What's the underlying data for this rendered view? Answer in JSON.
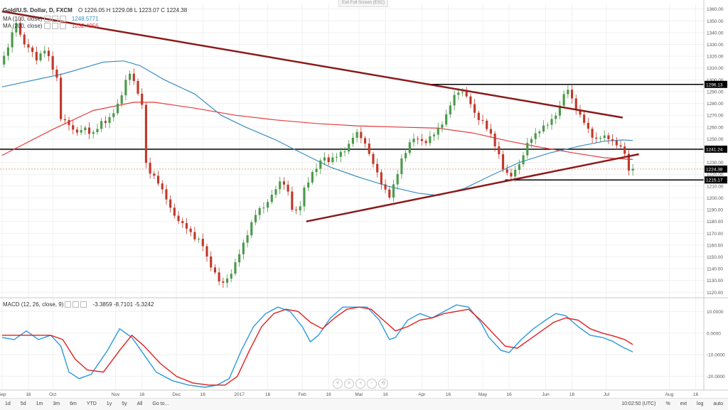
{
  "header": {
    "symbol": "Gold/U.S. Dollar, D, FXCM",
    "ohlc": "O 1226.05 H 1229.08 L 1223.07 C 1224.38",
    "ma1_label": "MA (100, close)",
    "ma1_value": "1248.5771",
    "ma2_label": "MA (200, close)",
    "ma2_value": "1232.4956",
    "exit_fullscreen": "Exit Full Screen (ESC)",
    "macd_label": "MACD (12, 26, close, 9)",
    "macd_values": "-3.3859  -8.7101  -5.3242"
  },
  "bottom_bar": {
    "ranges": [
      "1d",
      "5d",
      "1m",
      "3m",
      "6m",
      "YTD",
      "1y",
      "5y",
      "All",
      "Go to..."
    ],
    "time": "10:02:50 (UTC)",
    "right_controls": [
      "%",
      "ext",
      "log",
      "auto"
    ]
  },
  "nav_buttons": [
    "<",
    ">",
    "+",
    "-",
    "⟲"
  ],
  "colors": {
    "up": "#4a9a4a",
    "down": "#c0392b",
    "ma100": "#3a8fc4",
    "ma200": "#e43d3d",
    "trendline": "#8b1a1a",
    "level": "#000000",
    "macd": "#2a9ae0",
    "signal": "#e02020"
  },
  "chart_data": {
    "type": "candlestick",
    "y_axis_ticks": [
      "1360.00",
      "1350.00",
      "1340.00",
      "1330.00",
      "1320.00",
      "1310.00",
      "1300.00",
      "1290.00",
      "1280.00",
      "1270.00",
      "1260.00",
      "1250.00",
      "1240.00",
      "1230.00",
      "1220.00",
      "1210.00",
      "1200.00",
      "1190.00",
      "1180.00",
      "1170.00",
      "1160.00",
      "1150.00",
      "1140.00",
      "1130.00",
      "1120.00"
    ],
    "ylim": [
      1116,
      1364
    ],
    "x_axis_labels": [
      {
        "label": "Sep",
        "day": 0
      },
      {
        "label": "16",
        "day": 13
      },
      {
        "label": "Oct",
        "day": 25
      },
      {
        "label": "Nov",
        "day": 56
      },
      {
        "label": "16",
        "day": 69
      },
      {
        "label": "Dec",
        "day": 86
      },
      {
        "label": "16",
        "day": 99
      },
      {
        "label": "2017",
        "day": 117
      },
      {
        "label": "16",
        "day": 131
      },
      {
        "label": "Feb",
        "day": 148
      },
      {
        "label": "16",
        "day": 161
      },
      {
        "label": "Mar",
        "day": 176
      },
      {
        "label": "16",
        "day": 189
      },
      {
        "label": "Apr",
        "day": 207
      },
      {
        "label": "16",
        "day": 220
      },
      {
        "label": "May",
        "day": 237
      },
      {
        "label": "16",
        "day": 250
      },
      {
        "label": "Jun",
        "day": 268
      },
      {
        "label": "16",
        "day": 281
      },
      {
        "label": "Jul",
        "day": 298
      },
      {
        "label": "Aug",
        "day": 329
      },
      {
        "label": "16",
        "day": 342
      }
    ],
    "xlim": [
      -1,
      346
    ],
    "price_labels": [
      {
        "value": 1296.13,
        "text": "1296.13"
      },
      {
        "value": 1241.24,
        "text": "1241.24"
      },
      {
        "value": 1224.38,
        "text": "1224.38"
      },
      {
        "value": 1215.17,
        "text": "1215.17"
      }
    ],
    "close_series": [
      {
        "day": 0,
        "close": 1313
      },
      {
        "day": 4,
        "close": 1335
      },
      {
        "day": 7,
        "close": 1348
      },
      {
        "day": 10,
        "close": 1333
      },
      {
        "day": 14,
        "close": 1325
      },
      {
        "day": 17,
        "close": 1318
      },
      {
        "day": 21,
        "close": 1325
      },
      {
        "day": 24,
        "close": 1316
      },
      {
        "day": 27,
        "close": 1300
      },
      {
        "day": 28,
        "close": 1268
      },
      {
        "day": 32,
        "close": 1265
      },
      {
        "day": 36,
        "close": 1254
      },
      {
        "day": 40,
        "close": 1260
      },
      {
        "day": 44,
        "close": 1253
      },
      {
        "day": 48,
        "close": 1262
      },
      {
        "day": 52,
        "close": 1266
      },
      {
        "day": 55,
        "close": 1272
      },
      {
        "day": 58,
        "close": 1282
      },
      {
        "day": 61,
        "close": 1300
      },
      {
        "day": 64,
        "close": 1306
      },
      {
        "day": 67,
        "close": 1288
      },
      {
        "day": 70,
        "close": 1275
      },
      {
        "day": 71,
        "close": 1228
      },
      {
        "day": 74,
        "close": 1220
      },
      {
        "day": 78,
        "close": 1210
      },
      {
        "day": 81,
        "close": 1200
      },
      {
        "day": 84,
        "close": 1186
      },
      {
        "day": 88,
        "close": 1180
      },
      {
        "day": 92,
        "close": 1172
      },
      {
        "day": 96,
        "close": 1165
      },
      {
        "day": 99,
        "close": 1160
      },
      {
        "day": 101,
        "close": 1150
      },
      {
        "day": 104,
        "close": 1138
      },
      {
        "day": 107,
        "close": 1130
      },
      {
        "day": 110,
        "close": 1128
      },
      {
        "day": 113,
        "close": 1136
      },
      {
        "day": 116,
        "close": 1150
      },
      {
        "day": 119,
        "close": 1160
      },
      {
        "day": 122,
        "close": 1175
      },
      {
        "day": 125,
        "close": 1186
      },
      {
        "day": 128,
        "close": 1192
      },
      {
        "day": 131,
        "close": 1196
      },
      {
        "day": 134,
        "close": 1205
      },
      {
        "day": 137,
        "close": 1214
      },
      {
        "day": 140,
        "close": 1210
      },
      {
        "day": 143,
        "close": 1192
      },
      {
        "day": 146,
        "close": 1186
      },
      {
        "day": 149,
        "close": 1208
      },
      {
        "day": 152,
        "close": 1218
      },
      {
        "day": 155,
        "close": 1225
      },
      {
        "day": 158,
        "close": 1236
      },
      {
        "day": 161,
        "close": 1230
      },
      {
        "day": 164,
        "close": 1236
      },
      {
        "day": 167,
        "close": 1237
      },
      {
        "day": 170,
        "close": 1242
      },
      {
        "day": 173,
        "close": 1252
      },
      {
        "day": 176,
        "close": 1255
      },
      {
        "day": 179,
        "close": 1246
      },
      {
        "day": 182,
        "close": 1232
      },
      {
        "day": 185,
        "close": 1222
      },
      {
        "day": 188,
        "close": 1207
      },
      {
        "day": 191,
        "close": 1202
      },
      {
        "day": 194,
        "close": 1215
      },
      {
        "day": 197,
        "close": 1232
      },
      {
        "day": 200,
        "close": 1244
      },
      {
        "day": 203,
        "close": 1250
      },
      {
        "day": 206,
        "close": 1250
      },
      {
        "day": 209,
        "close": 1246
      },
      {
        "day": 212,
        "close": 1254
      },
      {
        "day": 215,
        "close": 1258
      },
      {
        "day": 218,
        "close": 1265
      },
      {
        "day": 221,
        "close": 1280
      },
      {
        "day": 224,
        "close": 1288
      },
      {
        "day": 226,
        "close": 1292
      },
      {
        "day": 229,
        "close": 1286
      },
      {
        "day": 232,
        "close": 1275
      },
      {
        "day": 235,
        "close": 1267
      },
      {
        "day": 238,
        "close": 1262
      },
      {
        "day": 241,
        "close": 1254
      },
      {
        "day": 244,
        "close": 1240
      },
      {
        "day": 246,
        "close": 1230
      },
      {
        "day": 248,
        "close": 1222
      },
      {
        "day": 251,
        "close": 1218
      },
      {
        "day": 254,
        "close": 1226
      },
      {
        "day": 257,
        "close": 1236
      },
      {
        "day": 260,
        "close": 1250
      },
      {
        "day": 263,
        "close": 1254
      },
      {
        "day": 266,
        "close": 1258
      },
      {
        "day": 269,
        "close": 1264
      },
      {
        "day": 272,
        "close": 1266
      },
      {
        "day": 275,
        "close": 1278
      },
      {
        "day": 278,
        "close": 1294
      },
      {
        "day": 281,
        "close": 1284
      },
      {
        "day": 284,
        "close": 1272
      },
      {
        "day": 287,
        "close": 1264
      },
      {
        "day": 290,
        "close": 1255
      },
      {
        "day": 293,
        "close": 1248
      },
      {
        "day": 296,
        "close": 1254
      },
      {
        "day": 299,
        "close": 1250
      },
      {
        "day": 302,
        "close": 1246
      },
      {
        "day": 305,
        "close": 1244
      },
      {
        "day": 307,
        "close": 1236
      },
      {
        "day": 308,
        "close": 1222
      },
      {
        "day": 310,
        "close": 1226
      },
      {
        "day": 311,
        "close": 1224.38
      }
    ],
    "ma100_series": [
      {
        "day": 0,
        "value": 1294
      },
      {
        "day": 30,
        "value": 1305
      },
      {
        "day": 50,
        "value": 1315
      },
      {
        "day": 60,
        "value": 1316
      },
      {
        "day": 68,
        "value": 1312
      },
      {
        "day": 80,
        "value": 1300
      },
      {
        "day": 95,
        "value": 1288
      },
      {
        "day": 108,
        "value": 1270
      },
      {
        "day": 120,
        "value": 1260
      },
      {
        "day": 135,
        "value": 1249
      },
      {
        "day": 150,
        "value": 1236
      },
      {
        "day": 162,
        "value": 1226
      },
      {
        "day": 175,
        "value": 1218
      },
      {
        "day": 190,
        "value": 1210
      },
      {
        "day": 205,
        "value": 1204
      },
      {
        "day": 215,
        "value": 1202
      },
      {
        "day": 228,
        "value": 1208
      },
      {
        "day": 240,
        "value": 1218
      },
      {
        "day": 255,
        "value": 1230
      },
      {
        "day": 270,
        "value": 1238
      },
      {
        "day": 285,
        "value": 1244
      },
      {
        "day": 297,
        "value": 1248
      },
      {
        "day": 306,
        "value": 1249
      },
      {
        "day": 311,
        "value": 1248.58
      }
    ],
    "ma200_series": [
      {
        "day": 0,
        "value": 1236
      },
      {
        "day": 25,
        "value": 1258
      },
      {
        "day": 45,
        "value": 1274
      },
      {
        "day": 65,
        "value": 1281
      },
      {
        "day": 75,
        "value": 1281
      },
      {
        "day": 95,
        "value": 1276
      },
      {
        "day": 115,
        "value": 1270
      },
      {
        "day": 135,
        "value": 1266
      },
      {
        "day": 155,
        "value": 1263
      },
      {
        "day": 175,
        "value": 1261
      },
      {
        "day": 195,
        "value": 1260
      },
      {
        "day": 215,
        "value": 1259
      },
      {
        "day": 232,
        "value": 1255
      },
      {
        "day": 250,
        "value": 1248
      },
      {
        "day": 265,
        "value": 1243
      },
      {
        "day": 282,
        "value": 1238
      },
      {
        "day": 297,
        "value": 1234
      },
      {
        "day": 311,
        "value": 1232.5
      }
    ],
    "trendlines": [
      {
        "from": [
          0,
          1358
        ],
        "to": [
          306,
          1268
        ],
        "role": "descending resistance"
      },
      {
        "from": [
          150,
          1180
        ],
        "to": [
          314,
          1237
        ],
        "role": "ascending support"
      }
    ],
    "levels": [
      {
        "value": 1296.13,
        "from": 210,
        "to": 346
      },
      {
        "value": 1241.24,
        "from": -1,
        "to": 346
      },
      {
        "value": 1215.17,
        "from": 248,
        "to": 346
      }
    ],
    "macd": {
      "ylim": [
        -26,
        16
      ],
      "y_axis_ticks": [
        "10.0000",
        "0.0000",
        "-10.0000",
        "-20.0000"
      ],
      "macd_series": [
        {
          "day": 0,
          "value": -2
        },
        {
          "day": 6,
          "value": -3
        },
        {
          "day": 12,
          "value": 1
        },
        {
          "day": 18,
          "value": -3
        },
        {
          "day": 24,
          "value": -1
        },
        {
          "day": 29,
          "value": -6
        },
        {
          "day": 33,
          "value": -18
        },
        {
          "day": 38,
          "value": -21
        },
        {
          "day": 44,
          "value": -19
        },
        {
          "day": 52,
          "value": -8
        },
        {
          "day": 58,
          "value": 2
        },
        {
          "day": 64,
          "value": -2
        },
        {
          "day": 70,
          "value": -10
        },
        {
          "day": 76,
          "value": -18
        },
        {
          "day": 84,
          "value": -22
        },
        {
          "day": 92,
          "value": -24
        },
        {
          "day": 100,
          "value": -25
        },
        {
          "day": 106,
          "value": -24
        },
        {
          "day": 112,
          "value": -21
        },
        {
          "day": 118,
          "value": -8
        },
        {
          "day": 124,
          "value": 3
        },
        {
          "day": 130,
          "value": 9
        },
        {
          "day": 136,
          "value": 12
        },
        {
          "day": 142,
          "value": 10
        },
        {
          "day": 148,
          "value": 3
        },
        {
          "day": 152,
          "value": -4
        },
        {
          "day": 156,
          "value": -1
        },
        {
          "day": 162,
          "value": 7
        },
        {
          "day": 168,
          "value": 12
        },
        {
          "day": 174,
          "value": 12
        },
        {
          "day": 180,
          "value": 12
        },
        {
          "day": 186,
          "value": 6
        },
        {
          "day": 191,
          "value": -3
        },
        {
          "day": 194,
          "value": -2
        },
        {
          "day": 200,
          "value": 6
        },
        {
          "day": 206,
          "value": 9
        },
        {
          "day": 212,
          "value": 7
        },
        {
          "day": 218,
          "value": 10
        },
        {
          "day": 224,
          "value": 13
        },
        {
          "day": 230,
          "value": 12
        },
        {
          "day": 236,
          "value": 5
        },
        {
          "day": 240,
          "value": -2
        },
        {
          "day": 246,
          "value": -8
        },
        {
          "day": 250,
          "value": -9
        },
        {
          "day": 256,
          "value": -3
        },
        {
          "day": 262,
          "value": 2
        },
        {
          "day": 268,
          "value": 6
        },
        {
          "day": 273,
          "value": 9
        },
        {
          "day": 278,
          "value": 8
        },
        {
          "day": 284,
          "value": 3
        },
        {
          "day": 290,
          "value": -1
        },
        {
          "day": 296,
          "value": -2
        },
        {
          "day": 301,
          "value": -3.8
        },
        {
          "day": 306,
          "value": -6.5
        },
        {
          "day": 311,
          "value": -8.7
        }
      ],
      "signal_series": [
        {
          "day": 0,
          "value": -1
        },
        {
          "day": 8,
          "value": -1
        },
        {
          "day": 16,
          "value": -1
        },
        {
          "day": 24,
          "value": -1
        },
        {
          "day": 30,
          "value": -3
        },
        {
          "day": 36,
          "value": -12
        },
        {
          "day": 42,
          "value": -17
        },
        {
          "day": 50,
          "value": -18
        },
        {
          "day": 58,
          "value": -8
        },
        {
          "day": 64,
          "value": -1
        },
        {
          "day": 70,
          "value": -6
        },
        {
          "day": 78,
          "value": -14
        },
        {
          "day": 86,
          "value": -20
        },
        {
          "day": 94,
          "value": -23
        },
        {
          "day": 102,
          "value": -24
        },
        {
          "day": 110,
          "value": -24
        },
        {
          "day": 116,
          "value": -20
        },
        {
          "day": 122,
          "value": -8
        },
        {
          "day": 128,
          "value": 3
        },
        {
          "day": 134,
          "value": 9
        },
        {
          "day": 140,
          "value": 11
        },
        {
          "day": 146,
          "value": 10
        },
        {
          "day": 152,
          "value": 5
        },
        {
          "day": 158,
          "value": 2
        },
        {
          "day": 164,
          "value": 7
        },
        {
          "day": 170,
          "value": 11
        },
        {
          "day": 176,
          "value": 12
        },
        {
          "day": 182,
          "value": 11
        },
        {
          "day": 188,
          "value": 6
        },
        {
          "day": 194,
          "value": 1
        },
        {
          "day": 200,
          "value": 3
        },
        {
          "day": 206,
          "value": 6
        },
        {
          "day": 212,
          "value": 7
        },
        {
          "day": 218,
          "value": 9
        },
        {
          "day": 224,
          "value": 10
        },
        {
          "day": 230,
          "value": 11
        },
        {
          "day": 236,
          "value": 6
        },
        {
          "day": 242,
          "value": 0
        },
        {
          "day": 248,
          "value": -6
        },
        {
          "day": 254,
          "value": -7
        },
        {
          "day": 260,
          "value": -3
        },
        {
          "day": 266,
          "value": 1
        },
        {
          "day": 272,
          "value": 5
        },
        {
          "day": 278,
          "value": 7
        },
        {
          "day": 284,
          "value": 6
        },
        {
          "day": 290,
          "value": 2
        },
        {
          "day": 296,
          "value": 0
        },
        {
          "day": 302,
          "value": -1.5
        },
        {
          "day": 307,
          "value": -3
        },
        {
          "day": 311,
          "value": -5.3
        }
      ]
    }
  }
}
